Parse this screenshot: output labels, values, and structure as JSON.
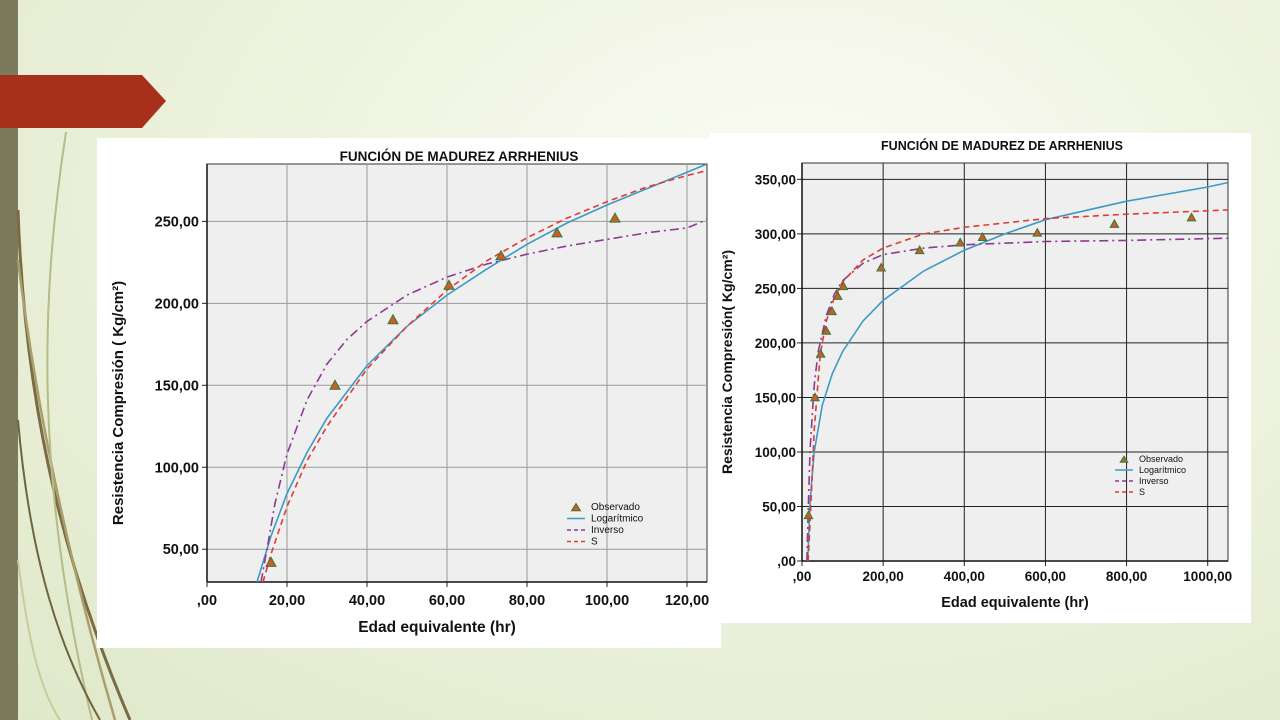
{
  "colors": {
    "observed_fill": "#d05a2a",
    "observed_edge": "#2f7d32",
    "logarithmic": "#3d9ac4",
    "inverse": "#8d3a92",
    "s_curve": "#e03c32",
    "plot_bg": "#efefef",
    "accent_arrow": "#a8301b"
  },
  "chart_data": [
    {
      "type": "scatter",
      "title": "FUNCIÓN DE MADUREZ ARRHENIUS",
      "xlabel": "Edad equivalente (hr)",
      "ylabel": "Resistencia Compresión ( Kg/cm²)",
      "xlim": [
        0,
        125
      ],
      "ylim": [
        30,
        285
      ],
      "xticks": [
        0,
        20,
        40,
        60,
        80,
        100,
        120
      ],
      "xtick_labels": [
        ",00",
        "20,00",
        "40,00",
        "60,00",
        "80,00",
        "100,00",
        "120,00"
      ],
      "yticks": [
        50,
        100,
        150,
        200,
        250
      ],
      "ytick_labels": [
        "50,00",
        "100,00",
        "150,00",
        "200,00",
        "250,00"
      ],
      "grid": true,
      "legend_position": "bottom-right",
      "series": [
        {
          "name": "Observado",
          "kind": "markers",
          "x": [
            16,
            32,
            46.5,
            60.5,
            73.5,
            87.5,
            102
          ],
          "y": [
            42,
            150,
            190,
            211,
            229,
            243,
            252
          ]
        },
        {
          "name": "Logarítmico",
          "kind": "line",
          "style": "solid",
          "x": [
            12.5,
            16,
            20,
            25,
            30,
            40,
            50,
            60,
            70,
            80,
            90,
            100,
            110,
            120,
            125
          ],
          "y": [
            30,
            58,
            84,
            109,
            130,
            162,
            186,
            205,
            221,
            236,
            249,
            260,
            270,
            280,
            285
          ]
        },
        {
          "name": "Inverso",
          "kind": "line",
          "style": "dashdot",
          "x": [
            13.5,
            15,
            17,
            20,
            25,
            30,
            35,
            40,
            50,
            60,
            70,
            80,
            90,
            100,
            110,
            120,
            125
          ],
          "y": [
            30,
            50,
            78,
            108,
            141,
            163,
            178,
            189,
            205,
            216,
            224,
            230,
            235,
            239,
            243,
            246,
            251
          ]
        },
        {
          "name": "S",
          "kind": "line",
          "style": "dashed",
          "x": [
            14,
            16,
            20,
            25,
            30,
            40,
            50,
            60,
            70,
            80,
            90,
            100,
            110,
            120,
            125
          ],
          "y": [
            30,
            47,
            76,
            104,
            125,
            160,
            186,
            208,
            226,
            240,
            252,
            262,
            271,
            278,
            281
          ]
        }
      ]
    },
    {
      "type": "scatter",
      "title": "FUNCIÓN DE MADUREZ DE ARRHENIUS",
      "xlabel": "Edad equivalente (hr)",
      "ylabel": "Resistencia Compresión( Kg/cm²)",
      "xlim": [
        0,
        1050
      ],
      "ylim": [
        0,
        365
      ],
      "xticks": [
        0,
        200,
        400,
        600,
        800,
        1000
      ],
      "xtick_labels": [
        ",00",
        "200,00",
        "400,00",
        "600,00",
        "800,00",
        "1000,00"
      ],
      "yticks": [
        0,
        50,
        100,
        150,
        200,
        250,
        300,
        350
      ],
      "ytick_labels": [
        ",00",
        "50,00",
        "100,00",
        "150,00",
        "200,00",
        "250,00",
        "300,00",
        "350,00"
      ],
      "grid": true,
      "legend_position": "bottom-right",
      "series": [
        {
          "name": "Observado",
          "kind": "markers",
          "x": [
            16,
            32,
            46,
            60,
            74,
            88,
            102,
            195,
            290,
            390,
            445,
            580,
            770,
            960
          ],
          "y": [
            42,
            150,
            190,
            211,
            229,
            243,
            252,
            269,
            285,
            292,
            297,
            301,
            309,
            315
          ]
        },
        {
          "name": "Logarítmico",
          "kind": "line",
          "style": "solid",
          "x": [
            14,
            20,
            30,
            50,
            75,
            100,
            150,
            200,
            300,
            400,
            500,
            600,
            800,
            1000,
            1050
          ],
          "y": [
            0,
            55,
            100,
            143,
            172,
            192,
            220,
            239,
            266,
            285,
            300,
            313,
            330,
            343,
            347
          ]
        },
        {
          "name": "Inverso",
          "kind": "line",
          "style": "dashdot",
          "x": [
            12,
            16,
            20,
            30,
            40,
            60,
            80,
            100,
            150,
            200,
            300,
            400,
            600,
            800,
            1050
          ],
          "y": [
            0,
            55,
            103,
            161,
            192,
            225,
            245,
            257,
            273,
            281,
            287,
            290,
            293,
            294,
            296
          ]
        },
        {
          "name": "S",
          "kind": "line",
          "style": "dashed",
          "x": [
            15,
            20,
            30,
            45,
            60,
            80,
            100,
            150,
            200,
            300,
            400,
            600,
            800,
            1050
          ],
          "y": [
            0,
            35,
            120,
            190,
            220,
            242,
            256,
            276,
            287,
            300,
            306,
            314,
            318,
            322
          ]
        }
      ]
    }
  ]
}
